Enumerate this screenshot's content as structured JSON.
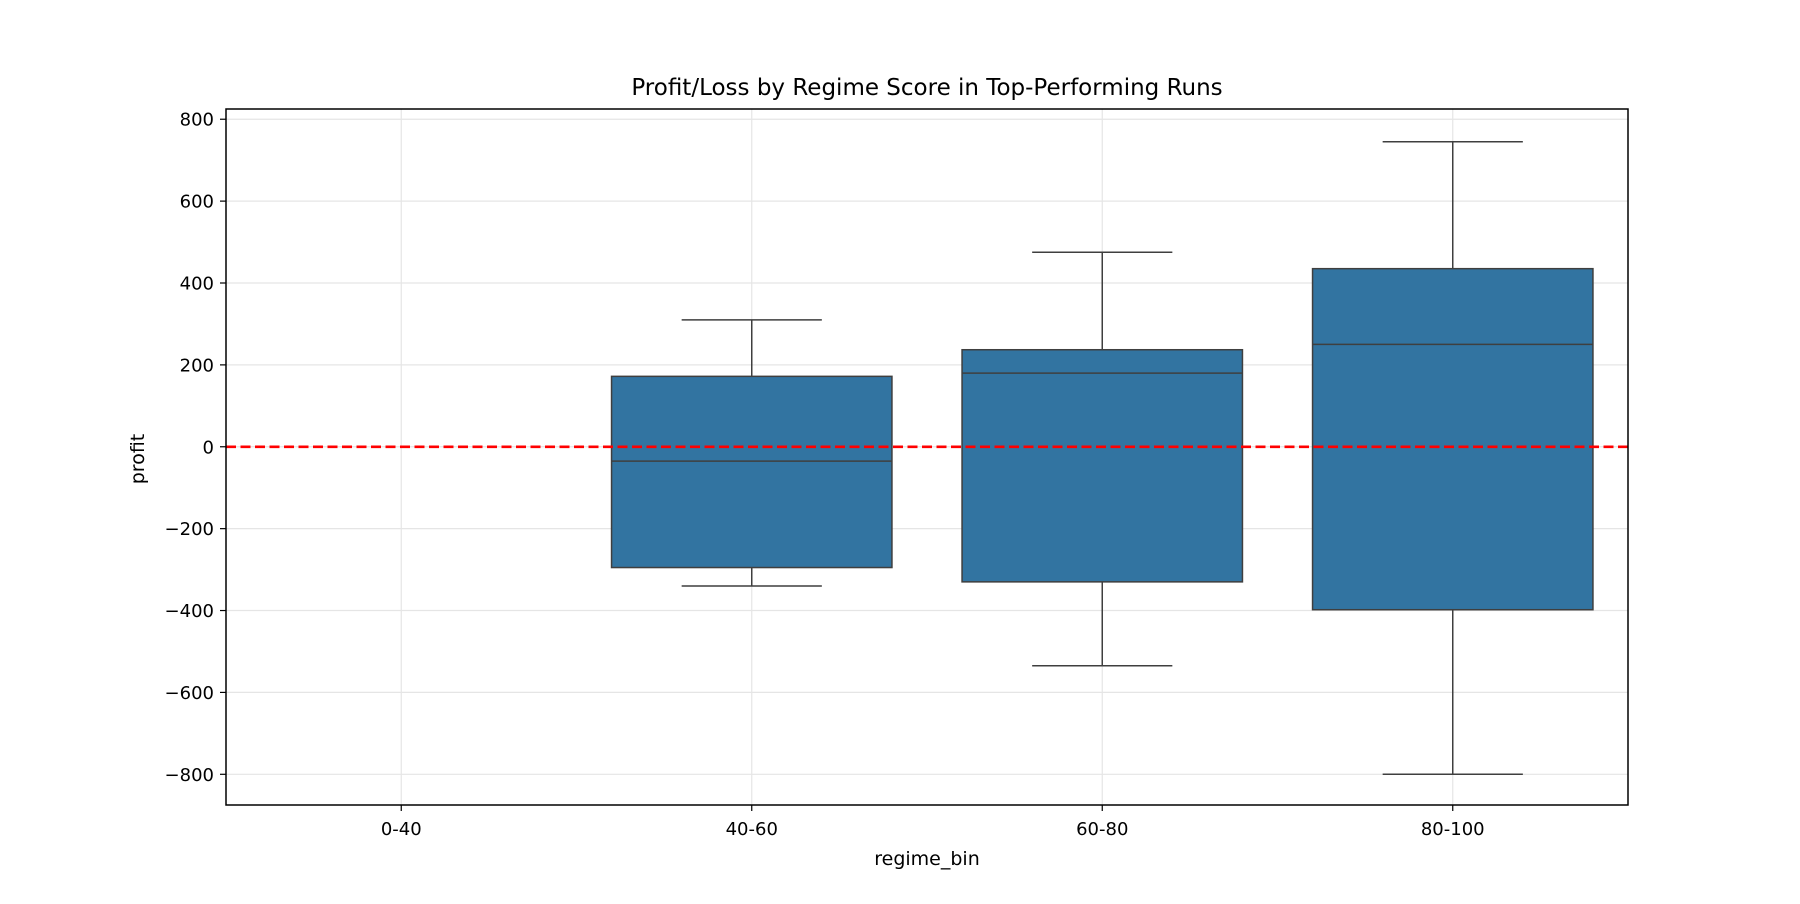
{
  "chart_data": {
    "type": "box",
    "title": "Profit/Loss by Regime Score in Top-Performing Runs",
    "xlabel": "regime_bin",
    "ylabel": "profit",
    "categories": [
      "0-40",
      "40-60",
      "60-80",
      "80-100"
    ],
    "boxes": [
      null,
      {
        "whisker_low": -340,
        "q1": -295,
        "median": -35,
        "q3": 172,
        "whisker_high": 310
      },
      {
        "whisker_low": -535,
        "q1": -330,
        "median": 180,
        "q3": 237,
        "whisker_high": 475
      },
      {
        "whisker_low": -800,
        "q1": -398,
        "median": 250,
        "q3": 435,
        "whisker_high": 745
      }
    ],
    "ylim": [
      -875,
      825
    ],
    "yticks": [
      800,
      600,
      400,
      200,
      0,
      -200,
      -400,
      -600,
      -800
    ],
    "ytick_labels": [
      "800",
      "600",
      "400",
      "200",
      "0",
      "−200",
      "−400",
      "−600",
      "−800"
    ],
    "reference_line": {
      "y": 0,
      "style": "dashed",
      "color": "#ff0000"
    },
    "box_color": "#3274a1",
    "edge_color": "#3f3f3f",
    "grid": true
  }
}
